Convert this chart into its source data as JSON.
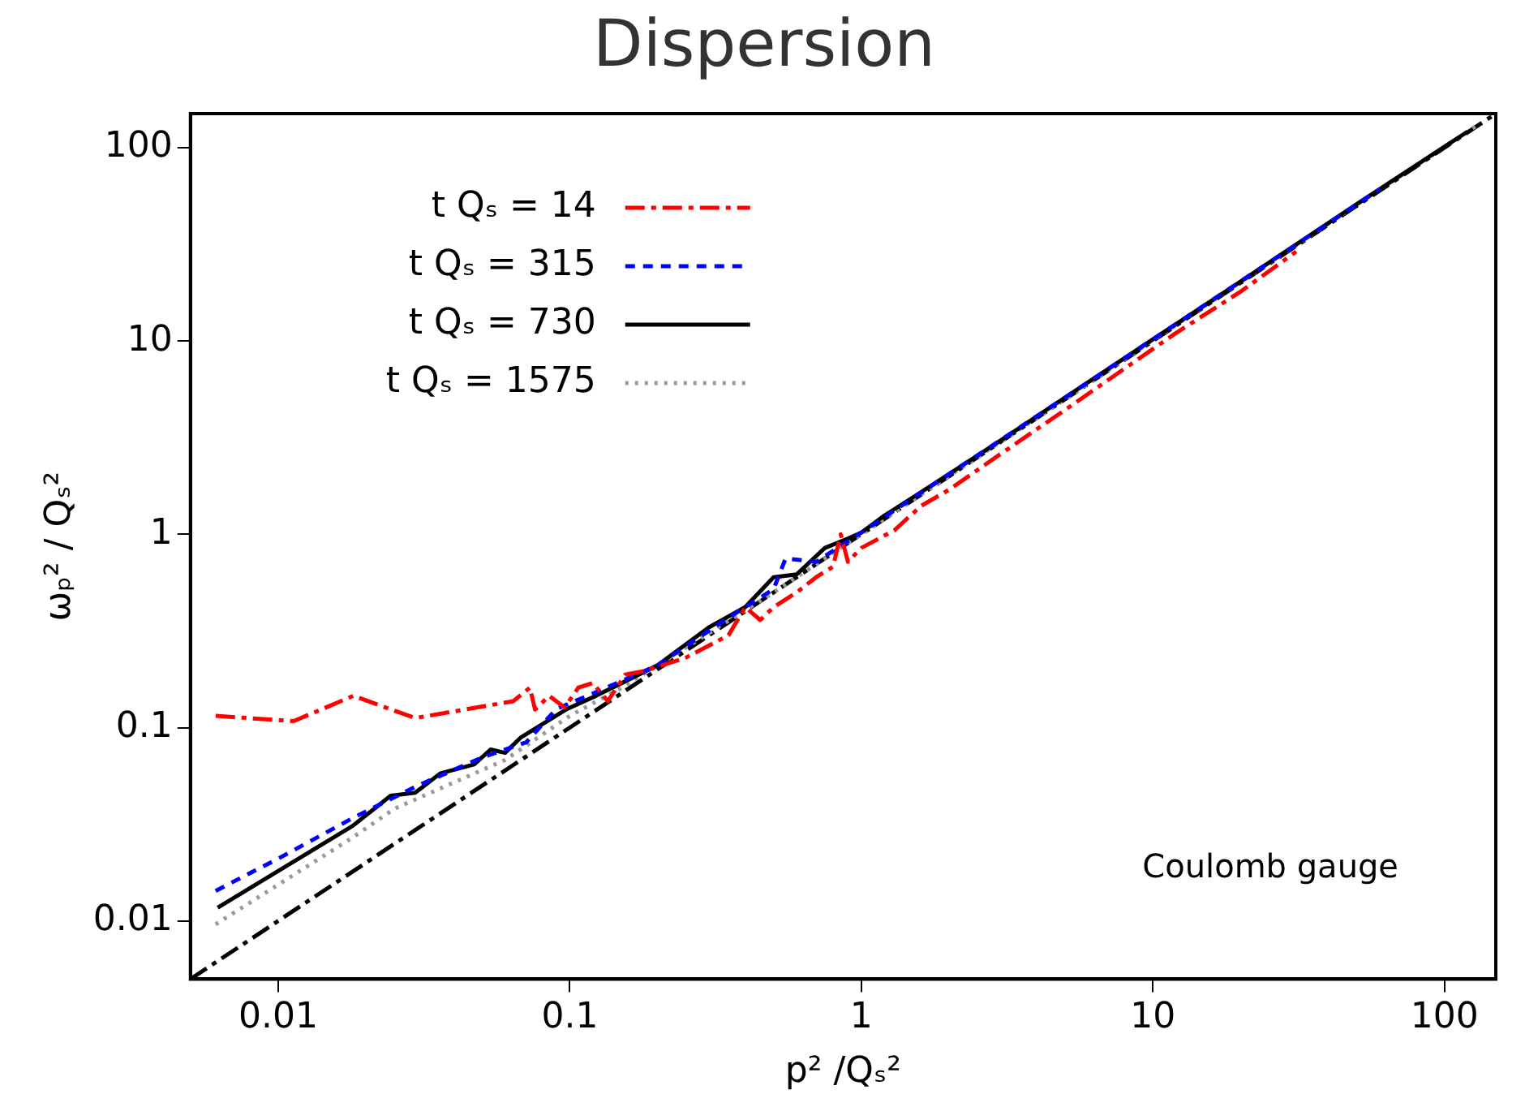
{
  "chart_data": {
    "type": "line",
    "title": "Dispersion",
    "xlabel": "p² /Qₛ²",
    "ylabel": "ωₚ² / Qₛ²",
    "log": "xy",
    "xlim": [
      0.005,
      150
    ],
    "ylim": [
      0.005,
      150
    ],
    "xticks": [
      0.01,
      0.1,
      1,
      10,
      100
    ],
    "yticks": [
      0.01,
      0.1,
      1,
      10,
      100
    ],
    "grid": false,
    "legend": "top left",
    "marker": "none",
    "annotations": [
      "Coulomb gauge"
    ],
    "series": [
      {
        "name": "t Qₛ = 14",
        "color": "#ff0000",
        "line_style": "dashdot",
        "x": [
          0.0061,
          0.0113,
          0.0181,
          0.0295,
          0.064,
          0.073,
          0.076,
          0.085,
          0.096,
          0.107,
          0.12,
          0.135,
          0.155,
          0.18,
          0.25,
          0.35,
          0.4,
          0.45,
          0.5,
          0.6,
          0.7,
          0.8,
          0.85,
          0.9,
          1,
          1.3,
          1.6,
          2,
          3,
          5,
          8,
          12,
          20,
          31
        ],
        "values": [
          0.115,
          0.108,
          0.146,
          0.112,
          0.137,
          0.161,
          0.124,
          0.146,
          0.127,
          0.161,
          0.17,
          0.137,
          0.188,
          0.196,
          0.23,
          0.3,
          0.42,
          0.36,
          0.42,
          0.5,
          0.6,
          0.68,
          1.0,
          0.72,
          0.85,
          1.05,
          1.4,
          1.7,
          2.6,
          4.4,
          7.2,
          11,
          18,
          29
        ]
      },
      {
        "name": "t Qₛ = 315",
        "color": "#0000ff",
        "line_style": "dashed",
        "x": [
          0.0061,
          0.01,
          0.018,
          0.03,
          0.05,
          0.071,
          0.09,
          0.12,
          0.2,
          0.35,
          0.5,
          0.55,
          0.7,
          1,
          2,
          5,
          10,
          30,
          60
        ],
        "values": [
          0.0143,
          0.021,
          0.034,
          0.05,
          0.07,
          0.084,
          0.125,
          0.15,
          0.21,
          0.37,
          0.52,
          0.75,
          0.72,
          1.02,
          2.05,
          5.1,
          10.2,
          30.5,
          61
        ]
      },
      {
        "name": "t Qₛ = 730",
        "color": "#000000",
        "line_style": "solid",
        "x": [
          0.0062,
          0.018,
          0.0243,
          0.0295,
          0.036,
          0.047,
          0.0535,
          0.06,
          0.068,
          0.097,
          0.123,
          0.2,
          0.3,
          0.4,
          0.5,
          0.6,
          0.75,
          0.9,
          1,
          1.2,
          1.5,
          2,
          3,
          5,
          10,
          20,
          50,
          120
        ],
        "values": [
          0.0117,
          0.031,
          0.0444,
          0.046,
          0.058,
          0.0645,
          0.077,
          0.074,
          0.089,
          0.124,
          0.146,
          0.21,
          0.33,
          0.42,
          0.6,
          0.62,
          0.85,
          0.95,
          1.02,
          1.25,
          1.55,
          2.05,
          3.05,
          5.1,
          10.2,
          20.3,
          51,
          121
        ]
      },
      {
        "name": "t Qₛ = 1575",
        "color": "#999999",
        "line_style": "dotted",
        "x": [
          0.0061,
          0.018,
          0.025,
          0.04,
          0.06,
          0.1,
          0.15,
          0.2,
          0.5,
          1,
          2,
          5,
          10,
          30,
          60,
          130
        ],
        "values": [
          0.0096,
          0.027,
          0.038,
          0.052,
          0.068,
          0.115,
          0.16,
          0.21,
          0.5,
          1.0,
          2.0,
          5.0,
          10.1,
          30.3,
          61,
          131
        ]
      },
      {
        "color": "#000000",
        "line_style": "dashdot",
        "x": [
          0.005,
          150
        ],
        "values": [
          0.005,
          150
        ]
      }
    ]
  }
}
